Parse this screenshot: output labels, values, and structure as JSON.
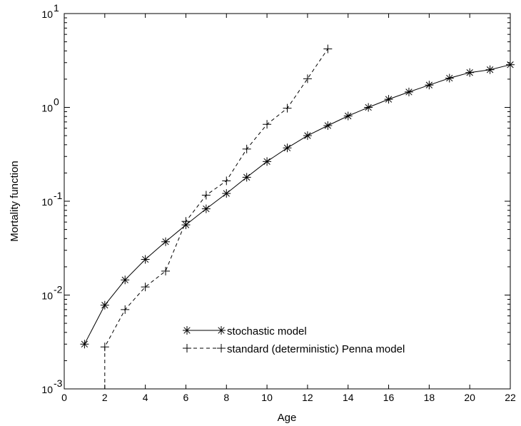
{
  "chart_data": {
    "type": "line",
    "title": "",
    "xlabel": "Age",
    "ylabel": "Mortality function",
    "xlim": [
      0,
      22
    ],
    "ylim": [
      0.001,
      10
    ],
    "yscale": "log",
    "grid": false,
    "legend_position": "bottom-center",
    "x_ticks": [
      0,
      2,
      4,
      6,
      8,
      10,
      12,
      14,
      16,
      18,
      20,
      22
    ],
    "x_tick_labels": [
      "0",
      "2",
      "4",
      "6",
      "8",
      "10",
      "12",
      "14",
      "16",
      "18",
      "20",
      "22"
    ],
    "y_ticks": [
      0.001,
      0.01,
      0.1,
      1,
      10
    ],
    "y_tick_labels": [
      {
        "base": "10",
        "exp": "-3"
      },
      {
        "base": "10",
        "exp": "-2"
      },
      {
        "base": "10",
        "exp": "-1"
      },
      {
        "base": "10",
        "exp": "0"
      },
      {
        "base": "10",
        "exp": "1"
      }
    ],
    "series": [
      {
        "name": "stochastic model",
        "line": "solid",
        "marker": "asterisk",
        "color": "#000000",
        "x": [
          1,
          2,
          3,
          4,
          5,
          6,
          7,
          8,
          9,
          10,
          11,
          12,
          13,
          14,
          15,
          16,
          17,
          18,
          19,
          20,
          21,
          22
        ],
        "y": [
          0.003,
          0.0078,
          0.0145,
          0.024,
          0.037,
          0.056,
          0.083,
          0.121,
          0.18,
          0.265,
          0.37,
          0.5,
          0.64,
          0.81,
          1.0,
          1.22,
          1.46,
          1.73,
          2.05,
          2.35,
          2.52,
          2.85
        ]
      },
      {
        "name": "standard (deterministic) Penna model",
        "line": "dashed",
        "marker": "plus",
        "color": "#000000",
        "x": [
          2,
          3,
          4,
          5,
          6,
          7,
          8,
          9,
          10,
          11,
          12,
          13
        ],
        "y": [
          0.0028,
          0.007,
          0.0122,
          0.018,
          0.061,
          0.116,
          0.165,
          0.36,
          0.66,
          0.98,
          2.02,
          4.2
        ],
        "extends_below_axis_at_x": 2
      }
    ]
  }
}
